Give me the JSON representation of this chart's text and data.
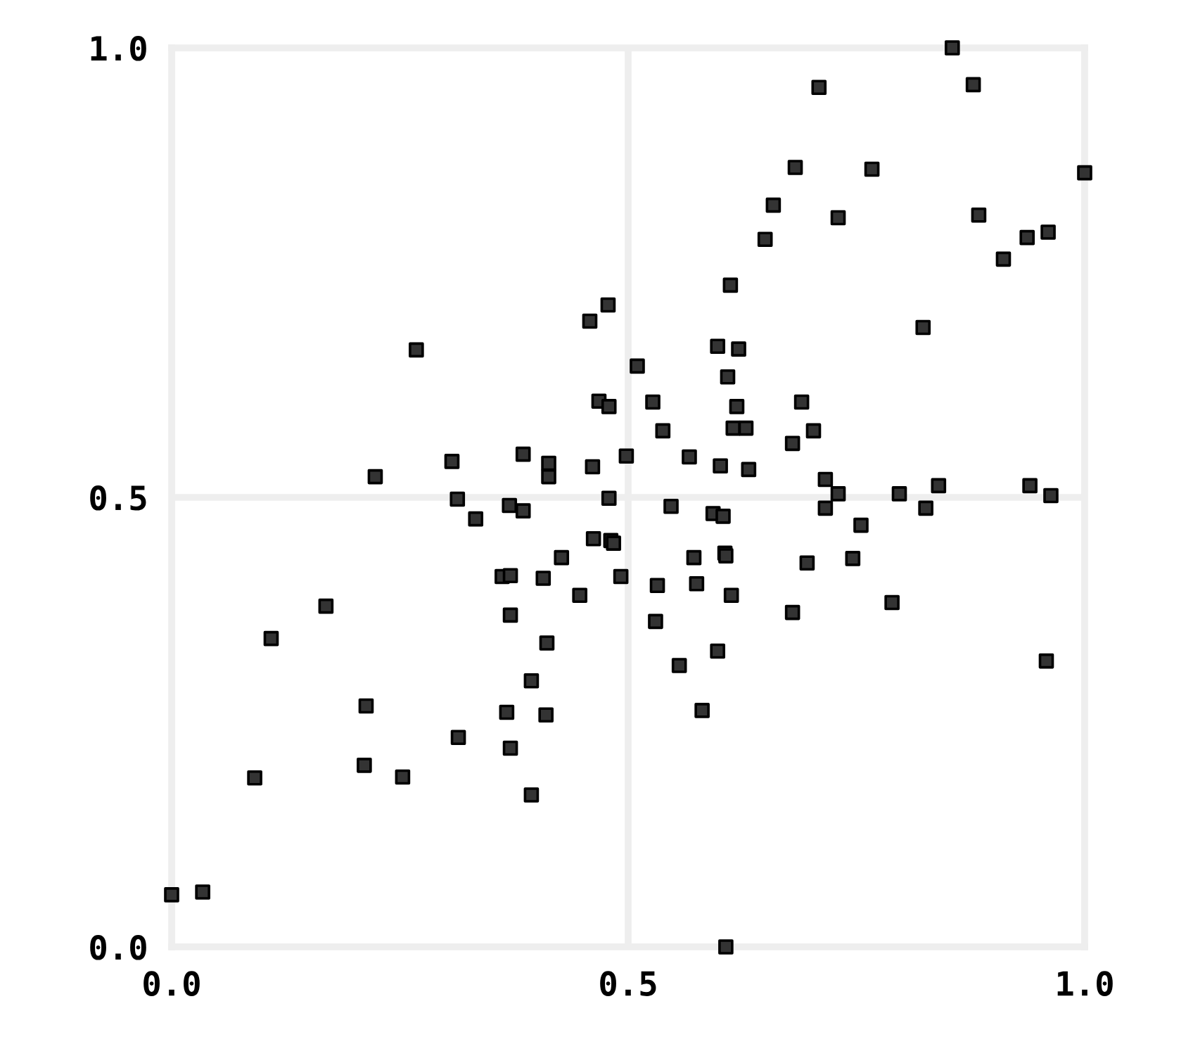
{
  "chart_data": {
    "type": "scatter",
    "marker": "square",
    "grid": true,
    "xlim": [
      0,
      1
    ],
    "ylim": [
      0,
      1
    ],
    "xticks": [
      {
        "value": 0,
        "label": "0.0"
      },
      {
        "value": 0.5,
        "label": "0.5"
      },
      {
        "value": 1,
        "label": "1.0"
      }
    ],
    "yticks": [
      {
        "value": 0,
        "label": "0.0"
      },
      {
        "value": 0.5,
        "label": "0.5"
      },
      {
        "value": 1,
        "label": "1.0"
      }
    ],
    "series": [
      {
        "color": "#333333",
        "x": [
          0.855,
          0.709,
          0.878,
          0.683,
          0.767,
          1.0,
          0.659,
          0.884,
          0.73,
          0.96,
          0.937,
          0.65,
          0.911,
          0.612,
          0.478,
          0.458,
          0.823,
          0.268,
          0.598,
          0.621,
          0.51,
          0.609,
          0.468,
          0.479,
          0.527,
          0.619,
          0.69,
          0.538,
          0.615,
          0.629,
          0.703,
          0.68,
          0.498,
          0.567,
          0.601,
          0.632,
          0.716,
          0.73,
          0.797,
          0.84,
          0.94,
          0.963,
          0.307,
          0.385,
          0.413,
          0.413,
          0.461,
          0.223,
          0.313,
          0.37,
          0.385,
          0.479,
          0.333,
          0.462,
          0.481,
          0.484,
          0.427,
          0.362,
          0.371,
          0.407,
          0.492,
          0.447,
          0.169,
          0.371,
          0.109,
          0.411,
          0.394,
          0.213,
          0.367,
          0.41,
          0.314,
          0.371,
          0.211,
          0.253,
          0.091,
          0.394,
          0.034,
          0.0,
          0.547,
          0.593,
          0.604,
          0.716,
          0.826,
          0.755,
          0.572,
          0.606,
          0.607,
          0.696,
          0.746,
          0.532,
          0.575,
          0.613,
          0.68,
          0.789,
          0.53,
          0.598,
          0.556,
          0.958,
          0.581,
          0.607
        ],
        "values": [
          1.0,
          0.956,
          0.959,
          0.867,
          0.865,
          0.861,
          0.825,
          0.814,
          0.811,
          0.795,
          0.789,
          0.787,
          0.765,
          0.736,
          0.714,
          0.696,
          0.689,
          0.664,
          0.668,
          0.665,
          0.646,
          0.634,
          0.607,
          0.601,
          0.606,
          0.601,
          0.606,
          0.574,
          0.577,
          0.577,
          0.574,
          0.56,
          0.546,
          0.545,
          0.535,
          0.531,
          0.52,
          0.504,
          0.504,
          0.513,
          0.513,
          0.502,
          0.54,
          0.548,
          0.538,
          0.523,
          0.534,
          0.523,
          0.498,
          0.491,
          0.485,
          0.499,
          0.476,
          0.454,
          0.452,
          0.449,
          0.433,
          0.412,
          0.413,
          0.41,
          0.412,
          0.391,
          0.379,
          0.369,
          0.343,
          0.338,
          0.296,
          0.268,
          0.261,
          0.258,
          0.233,
          0.221,
          0.202,
          0.189,
          0.188,
          0.169,
          0.061,
          0.058,
          0.49,
          0.482,
          0.479,
          0.488,
          0.488,
          0.469,
          0.433,
          0.438,
          0.435,
          0.427,
          0.432,
          0.402,
          0.404,
          0.391,
          0.372,
          0.383,
          0.362,
          0.329,
          0.313,
          0.318,
          0.263,
          0.0
        ]
      }
    ]
  }
}
